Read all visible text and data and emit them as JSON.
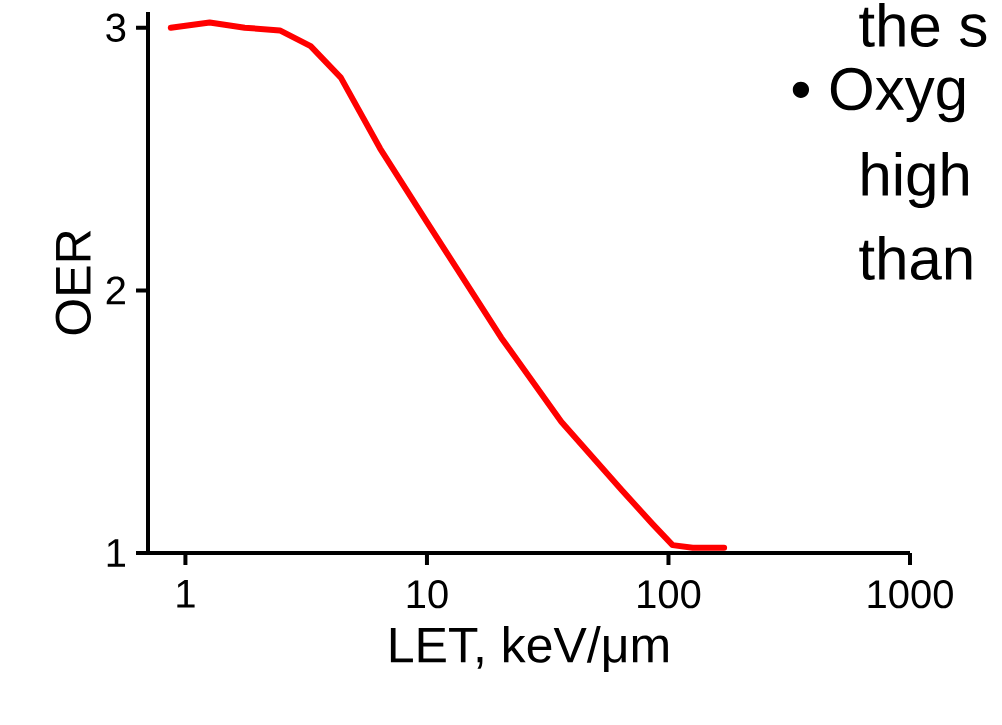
{
  "chart_data": {
    "type": "line",
    "xlabel": "LET, keV/μm",
    "ylabel": "OER",
    "log": "x",
    "x": [
      0.87,
      1.26,
      1.76,
      2.46,
      3.3,
      4.4,
      6.4,
      10,
      15.2,
      20.3,
      36,
      64,
      86,
      104,
      126,
      170
    ],
    "series": [
      {
        "color": "#ff0000",
        "values": [
          3.0,
          3.02,
          3.0,
          2.99,
          2.93,
          2.81,
          2.54,
          2.26,
          2.0,
          1.82,
          1.5,
          1.24,
          1.11,
          1.03,
          1.02,
          1.02
        ]
      }
    ],
    "xlim": [
      0.7,
      1000
    ],
    "ylim": [
      1,
      3.06
    ],
    "xticks": [
      1,
      10,
      100,
      1000
    ],
    "yticks": [
      1,
      2,
      3
    ],
    "marker": "none",
    "line_style": "solid",
    "annotations": [
      "the s",
      "• Oxyg",
      "high",
      "than"
    ]
  }
}
